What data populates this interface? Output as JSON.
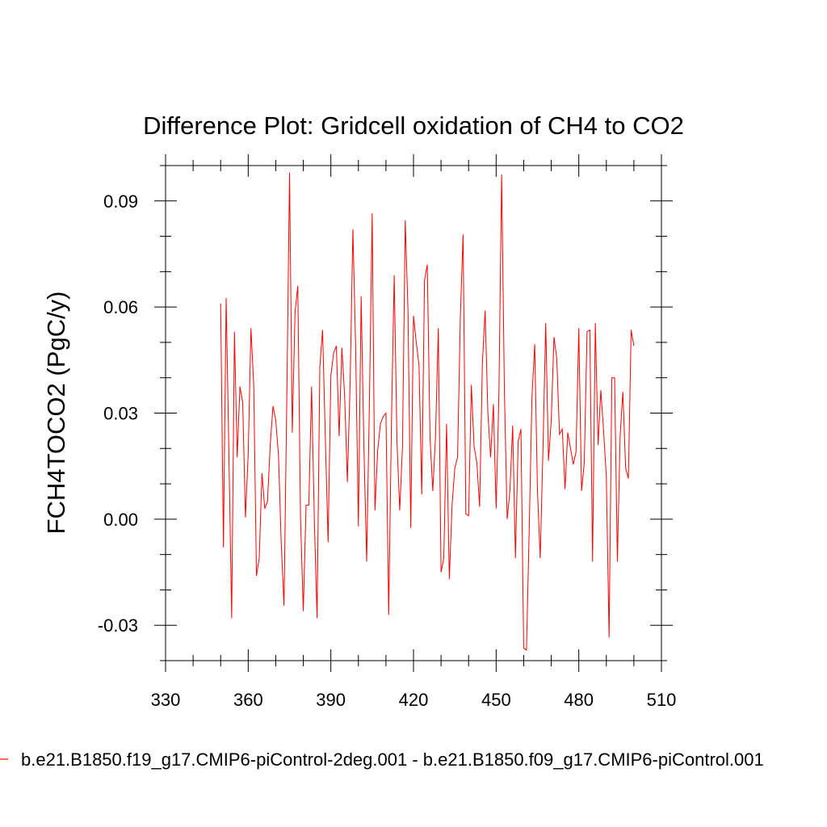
{
  "chart_data": {
    "type": "line",
    "title": "Difference Plot: Gridcell oxidation of CH4 to CO2",
    "xlabel": "",
    "ylabel": "FCH4TOCO2  (PgC/y)",
    "xlim": [
      330,
      510
    ],
    "ylim": [
      -0.04,
      0.1
    ],
    "xticks": [
      330,
      360,
      390,
      420,
      450,
      480,
      510
    ],
    "xtick_labels": [
      "330",
      "360",
      "390",
      "420",
      "450",
      "480",
      "510"
    ],
    "yticks": [
      -0.03,
      0.0,
      0.03,
      0.06,
      0.09
    ],
    "ytick_labels": [
      "-0.03",
      "0.00",
      "0.03",
      "0.06",
      "0.09"
    ],
    "grid": false,
    "legend_position": "bottom",
    "series": [
      {
        "name": "b.e21.B1850.f19_g17.CMIP6-piControl-2deg.001 - b.e21.B1850.f09_g17.CMIP6-piControl.001",
        "color": "#ff0000",
        "x_start": 350,
        "x_step": 1,
        "values": [
          0.061,
          -0.008,
          0.0625,
          0.018,
          -0.028,
          0.053,
          0.0175,
          0.0375,
          0.033,
          0.0005,
          0.0185,
          0.054,
          0.038,
          -0.016,
          -0.011,
          0.013,
          0.003,
          0.005,
          0.021,
          0.032,
          0.028,
          0.018,
          -0.007,
          -0.0245,
          0.0335,
          0.098,
          0.0245,
          0.0585,
          0.066,
          0.0,
          -0.026,
          0.004,
          0.004,
          0.0375,
          0.0,
          -0.028,
          0.043,
          0.0535,
          0.023,
          -0.0065,
          0.0405,
          0.047,
          0.049,
          0.0235,
          0.0485,
          0.035,
          0.0105,
          0.0385,
          0.082,
          0.0485,
          -0.002,
          0.063,
          0.0205,
          -0.012,
          0.033,
          0.0865,
          0.0025,
          0.0195,
          0.027,
          0.029,
          0.03,
          -0.027,
          0.0275,
          0.069,
          0.022,
          0.0025,
          0.0205,
          0.0845,
          0.059,
          -0.0025,
          0.0575,
          0.05,
          0.0435,
          0.007,
          0.0675,
          0.072,
          0.023,
          0.008,
          0.0235,
          0.054,
          -0.015,
          -0.011,
          0.027,
          -0.017,
          0.004,
          0.0145,
          0.0175,
          0.057,
          0.0805,
          0.0015,
          0.001,
          0.038,
          0.0205,
          0.016,
          0.0035,
          0.044,
          0.059,
          0.03,
          0.0175,
          0.0325,
          0.003,
          0.035,
          0.0975,
          0.036,
          0.0,
          0.008,
          0.0265,
          -0.011,
          0.022,
          0.0255,
          -0.0365,
          -0.037,
          -0.003,
          0.0345,
          0.0495,
          0.008,
          -0.011,
          0.02,
          0.0555,
          0.0165,
          0.028,
          0.0515,
          0.0455,
          0.024,
          0.0255,
          0.0085,
          0.0245,
          0.02,
          0.0155,
          0.019,
          0.054,
          0.008,
          0.016,
          0.053,
          0.0535,
          -0.012,
          0.0555,
          0.021,
          0.0365,
          0.025,
          0.012,
          -0.0335,
          0.04,
          0.04,
          -0.012,
          0.0235,
          0.036,
          0.0145,
          0.0115,
          0.0535,
          0.049
        ]
      }
    ]
  }
}
